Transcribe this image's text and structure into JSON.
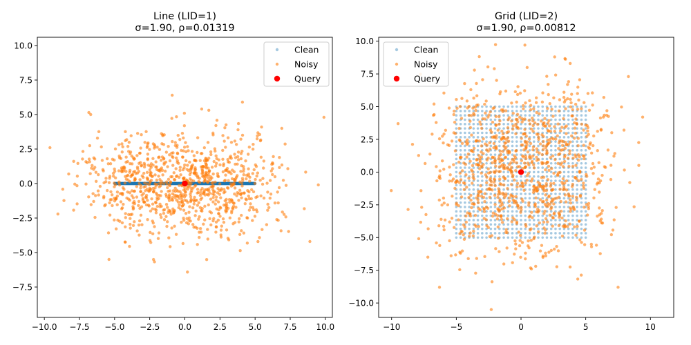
{
  "chart_data": [
    {
      "type": "scatter",
      "title": "Line (LID=1)",
      "subtitle": "σ=1.90, ρ=0.01319",
      "xlabel": "",
      "ylabel": "",
      "xlim": [
        -10.5,
        10.5
      ],
      "ylim": [
        -9.7,
        10.6
      ],
      "xticks": [
        -10.0,
        -7.5,
        -5.0,
        -2.5,
        0.0,
        2.5,
        5.0,
        7.5,
        10.0
      ],
      "xtick_labels": [
        "−10.0",
        "−7.5",
        "−5.0",
        "−2.5",
        "0.0",
        "2.5",
        "5.0",
        "7.5",
        "10.0"
      ],
      "yticks": [
        -7.5,
        -5.0,
        -2.5,
        0.0,
        2.5,
        5.0,
        7.5,
        10.0
      ],
      "ytick_labels": [
        "−7.5",
        "−5.0",
        "−2.5",
        "0.0",
        "2.5",
        "5.0",
        "7.5",
        "10.0"
      ],
      "grid": false,
      "legend_position": "top-right",
      "legend": [
        "Clean",
        "Noisy",
        "Query"
      ],
      "series": [
        {
          "name": "Clean",
          "kind": "line-of-points",
          "x_range": [
            -5,
            5
          ],
          "y": 0,
          "count": 1000
        },
        {
          "name": "Noisy",
          "kind": "gaussian-noise",
          "count": 1000,
          "sigma": 1.9
        },
        {
          "name": "Query",
          "x": [
            0.0
          ],
          "y": [
            0.0
          ]
        }
      ],
      "noisy_sample_extremes": [
        [
          -9.6,
          2.6
        ],
        [
          9.9,
          4.8
        ],
        [
          -0.9,
          6.4
        ],
        [
          4.1,
          5.9
        ],
        [
          -5.4,
          -5.5
        ],
        [
          8.9,
          -4.2
        ],
        [
          9.5,
          -0.1
        ],
        [
          6.9,
          4.0
        ],
        [
          -6.7,
          5.0
        ],
        [
          1.2,
          5.4
        ]
      ]
    },
    {
      "type": "scatter",
      "title": "Grid (LID=2)",
      "subtitle": "σ=1.90, ρ=0.00812",
      "xlabel": "",
      "ylabel": "",
      "xlim": [
        -11.0,
        11.8
      ],
      "ylim": [
        -11.1,
        10.3
      ],
      "xticks": [
        -10,
        -5,
        0,
        5,
        10
      ],
      "xtick_labels": [
        "−10",
        "−5",
        "0",
        "5",
        "10"
      ],
      "yticks": [
        -10.0,
        -7.5,
        -5.0,
        -2.5,
        0.0,
        2.5,
        5.0,
        7.5,
        10.0
      ],
      "ytick_labels": [
        "−10.0",
        "−7.5",
        "−5.0",
        "−2.5",
        "0.0",
        "2.5",
        "5.0",
        "7.5",
        "10.0"
      ],
      "grid": false,
      "legend_position": "top-left",
      "legend": [
        "Clean",
        "Noisy",
        "Query"
      ],
      "series": [
        {
          "name": "Clean",
          "kind": "grid-of-points",
          "x_range": [
            -5,
            5
          ],
          "y_range": [
            -5,
            5
          ],
          "steps": 31
        },
        {
          "name": "Noisy",
          "kind": "gaussian-noise",
          "count": 1000,
          "sigma": 1.9
        },
        {
          "name": "Query",
          "x": [
            0.0
          ],
          "y": [
            0.0
          ]
        }
      ],
      "noisy_sample_extremes": [
        [
          0.3,
          9.7
        ],
        [
          -2.3,
          -10.5
        ],
        [
          9.4,
          4.2
        ],
        [
          -9.5,
          3.7
        ],
        [
          8.3,
          7.3
        ],
        [
          -7.2,
          -6.5
        ],
        [
          7.5,
          -8.8
        ],
        [
          -6.3,
          -8.8
        ],
        [
          2.6,
          8.8
        ],
        [
          3.8,
          8.3
        ]
      ]
    }
  ],
  "colors": {
    "clean": "#1f77b4",
    "noisy": "#ff7f0e",
    "query": "#ff0000",
    "axis": "#000000"
  }
}
